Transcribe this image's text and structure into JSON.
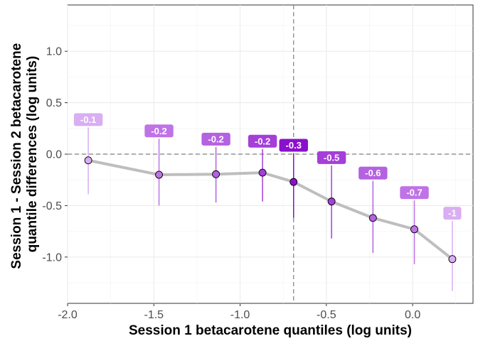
{
  "chart_data": {
    "type": "line",
    "title": "",
    "xlabel": "Session 1 betacarotene quantiles (log units)",
    "ylabel": "Session 1 - Session 2 betacarotene quantile differences (log units)",
    "ylabel_lines": [
      "Session 1 - Session 2 betacarotene",
      "quantile differences (log units)"
    ],
    "xlim": [
      -2.0,
      0.35
    ],
    "ylim": [
      -1.45,
      1.45
    ],
    "xticks": [
      -2.0,
      -1.5,
      -1.0,
      -0.5,
      0.0
    ],
    "xtick_labels": [
      "-2.0",
      "-1.5",
      "-1.0",
      "-0.5",
      "0.0"
    ],
    "yticks": [
      -1.0,
      -0.5,
      0.0,
      0.5,
      1.0
    ],
    "ytick_labels": [
      "-1.0",
      "-0.5",
      "0.0",
      "0.5",
      "1.0"
    ],
    "grid": true,
    "reference_lines": {
      "x": -0.69,
      "y": 0
    },
    "points": [
      {
        "x": -1.88,
        "y": -0.06,
        "lower": -0.39,
        "upper": 0.26,
        "label": "-0.1",
        "color": "#d9aef2"
      },
      {
        "x": -1.47,
        "y": -0.2,
        "lower": -0.5,
        "upper": 0.15,
        "label": "-0.2",
        "color": "#bf73e6"
      },
      {
        "x": -1.14,
        "y": -0.195,
        "lower": -0.47,
        "upper": 0.07,
        "label": "-0.2",
        "color": "#b462e1"
      },
      {
        "x": -0.87,
        "y": -0.18,
        "lower": -0.46,
        "upper": 0.05,
        "label": "-0.2",
        "color": "#a43fd8"
      },
      {
        "x": -0.69,
        "y": -0.27,
        "lower": -0.62,
        "upper": 0.01,
        "label": "-0.3",
        "color": "#8a10cc"
      },
      {
        "x": -0.47,
        "y": -0.46,
        "lower": -0.82,
        "upper": -0.11,
        "label": "-0.5",
        "color": "#a43fd8"
      },
      {
        "x": -0.23,
        "y": -0.62,
        "lower": -0.96,
        "upper": -0.26,
        "label": "-0.6",
        "color": "#b462e1"
      },
      {
        "x": 0.01,
        "y": -0.73,
        "lower": -1.07,
        "upper": -0.45,
        "label": "-0.7",
        "color": "#bf73e6"
      },
      {
        "x": 0.23,
        "y": -1.02,
        "lower": -1.33,
        "upper": -0.65,
        "label": "-1",
        "color": "#d9aef2"
      }
    ],
    "line_color": "#bebebe",
    "reference_line_color": "#7f7f7f"
  }
}
